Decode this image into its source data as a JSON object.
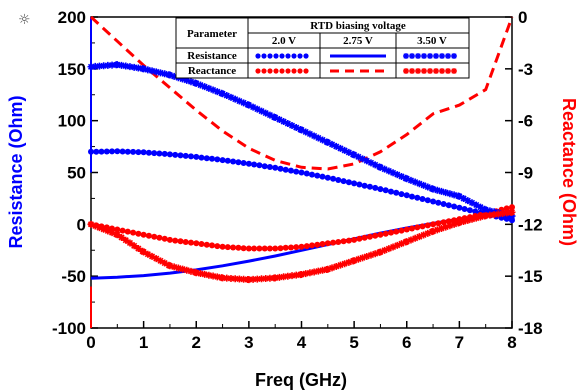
{
  "icon": "sun-icon",
  "chart_data": {
    "type": "line",
    "xlabel": "Freq (GHz)",
    "ylabel_left": "Resistance (Ohm)",
    "ylabel_right": "Reactance (Ohm)",
    "xlim": [
      0,
      8
    ],
    "ylim_left": [
      -100,
      200
    ],
    "ylim_right": [
      -18,
      0
    ],
    "xticks": [
      "0",
      "1",
      "2",
      "3",
      "4",
      "5",
      "6",
      "7",
      "8"
    ],
    "yticks_left": [
      "200",
      "150",
      "100",
      "50",
      "0",
      "-50",
      "-100"
    ],
    "yticks_right": [
      "0",
      "-3",
      "-6",
      "-9",
      "-12",
      "-15",
      "-18"
    ],
    "grid": false,
    "legend": {
      "placement": "top-right",
      "header": "Parameter",
      "group_title": "RTD biasing voltage",
      "columns": [
        "2.0 V",
        "2.75 V",
        "3.50 V"
      ],
      "rows": [
        "Resistance",
        "Reactance"
      ]
    },
    "series": [
      {
        "name": "2.75 V",
        "parameter": "Resistance",
        "axis": "left",
        "color": "#0000ff",
        "style": "solid",
        "x": [
          0,
          0.5,
          1,
          1.5,
          2,
          2.5,
          3,
          3.5,
          4,
          4.5,
          5,
          5.5,
          6,
          6.5,
          7,
          7.5,
          8
        ],
        "y": [
          -52,
          -51,
          -49.5,
          -47,
          -44,
          -40,
          -35.5,
          -30.5,
          -25,
          -19.5,
          -14,
          -8.5,
          -3.5,
          1,
          5,
          8.5,
          12
        ]
      },
      {
        "name": "2.75 V",
        "parameter": "Reactance",
        "axis": "right",
        "color": "#ff0000",
        "style": "dashed",
        "x": [
          0,
          0.5,
          1,
          1.5,
          2,
          2.5,
          3,
          3.5,
          4,
          4.5,
          5,
          5.5,
          6,
          6.5,
          7,
          7.5,
          8
        ],
        "y": [
          0,
          -1.4,
          -2.8,
          -4.1,
          -5.4,
          -6.6,
          -7.6,
          -8.3,
          -8.7,
          -8.8,
          -8.5,
          -7.8,
          -6.8,
          -5.6,
          -5.1,
          -4.2,
          0
        ]
      },
      {
        "name": "2.0 V",
        "parameter": "Resistance",
        "axis": "left",
        "color": "#0000ff",
        "style": "dots",
        "x": [
          0,
          0.5,
          1,
          1.5,
          2,
          2.5,
          3,
          3.5,
          4,
          4.5,
          5,
          5.5,
          6,
          6.5,
          7,
          7.5,
          8
        ],
        "y": [
          70,
          70.5,
          69.5,
          67.5,
          65,
          62,
          58.5,
          54.5,
          50,
          45,
          39.5,
          34,
          28,
          22,
          16,
          10,
          4
        ]
      },
      {
        "name": "2.0 V",
        "parameter": "Reactance",
        "axis": "right",
        "color": "#ff0000",
        "style": "dots",
        "x": [
          0,
          0.5,
          1,
          1.5,
          2,
          2.5,
          3,
          3.5,
          4,
          4.5,
          5,
          5.5,
          6,
          6.5,
          7,
          7.5,
          8
        ],
        "y": [
          -12,
          -12.3,
          -12.6,
          -12.9,
          -13.1,
          -13.3,
          -13.4,
          -13.4,
          -13.3,
          -13.1,
          -12.9,
          -12.6,
          -12.3,
          -12.0,
          -11.7,
          -11.4,
          -11.0
        ]
      },
      {
        "name": "3.50 V",
        "parameter": "Resistance",
        "axis": "left",
        "color": "#0000ff",
        "style": "stars",
        "x": [
          0,
          0.5,
          1,
          1.5,
          2,
          2.5,
          3,
          3.5,
          4,
          4.5,
          5,
          5.5,
          6,
          6.5,
          7,
          7.5,
          8
        ],
        "y": [
          152,
          154,
          150,
          144,
          136,
          126,
          115,
          103,
          91,
          79,
          67,
          55,
          44,
          34,
          27,
          14,
          8
        ]
      },
      {
        "name": "3.50 V",
        "parameter": "Reactance",
        "axis": "right",
        "color": "#ff0000",
        "style": "stars",
        "x": [
          0,
          0.5,
          1,
          1.5,
          2,
          2.5,
          3,
          3.5,
          4,
          4.5,
          5,
          5.5,
          6,
          6.5,
          7,
          7.5,
          8
        ],
        "y": [
          -12,
          -12.6,
          -13.6,
          -14.4,
          -14.8,
          -15.1,
          -15.2,
          -15.1,
          -14.9,
          -14.6,
          -14.1,
          -13.6,
          -13.0,
          -12.4,
          -11.9,
          -11.5,
          -11.3
        ]
      }
    ]
  }
}
